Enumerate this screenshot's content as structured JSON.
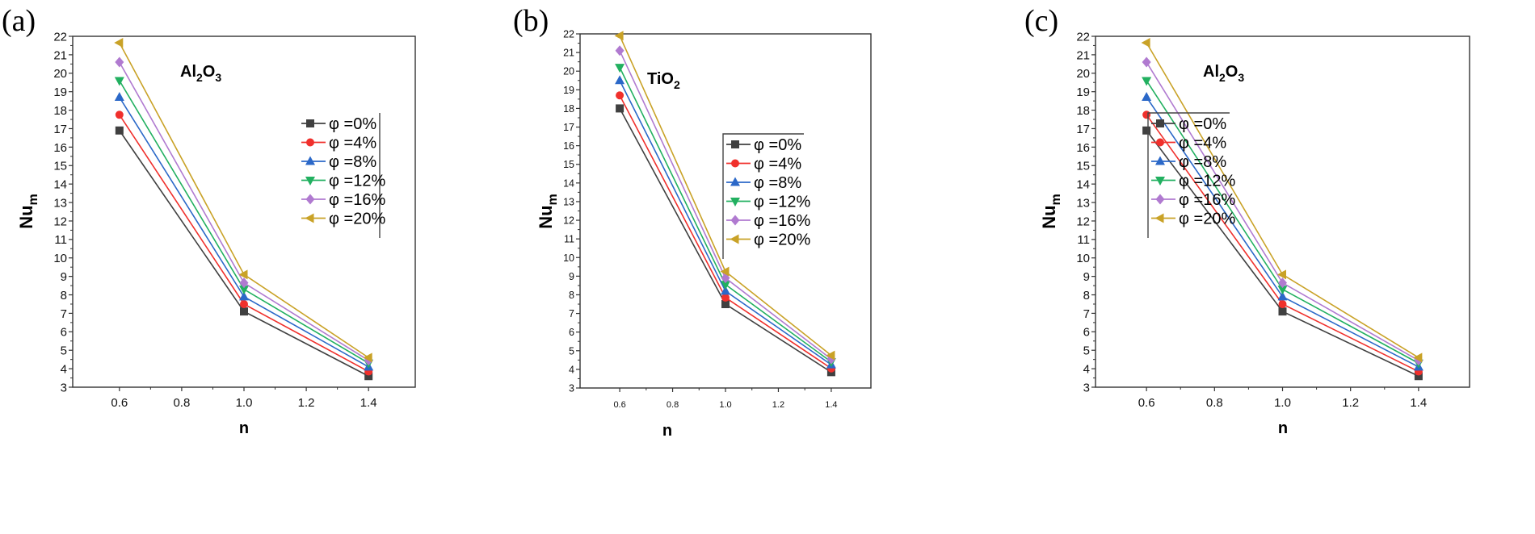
{
  "chart_data": [
    {
      "type": "line",
      "panel_label": "(a)",
      "annotation": {
        "base1": "Al",
        "sub1": "2",
        "base2": "O",
        "sub2": "3"
      },
      "title": "",
      "xlabel": "n",
      "ylabel": {
        "main": "Nu",
        "sub": "m"
      },
      "x": [
        0.6,
        1.0,
        1.4
      ],
      "xlim": [
        0.45,
        1.55
      ],
      "xticks": [
        "0.6",
        "0.8",
        "1.0",
        "1.2",
        "1.4"
      ],
      "ylim": [
        3,
        22
      ],
      "yticks": [
        "3",
        "4",
        "5",
        "6",
        "7",
        "8",
        "9",
        "10",
        "11",
        "12",
        "13",
        "14",
        "15",
        "16",
        "17",
        "18",
        "19",
        "20",
        "21",
        "22"
      ],
      "grid": false,
      "legend_position": "right",
      "series": [
        {
          "name": "φ =0%",
          "color": "#404040",
          "marker": "square",
          "values": [
            16.9,
            7.1,
            3.6
          ]
        },
        {
          "name": "φ =4%",
          "color": "#f0302c",
          "marker": "circle",
          "values": [
            17.75,
            7.5,
            3.85
          ]
        },
        {
          "name": "φ =8%",
          "color": "#2b68c8",
          "marker": "triangle-up",
          "values": [
            18.7,
            7.9,
            4.1
          ]
        },
        {
          "name": "φ =12%",
          "color": "#22b060",
          "marker": "triangle-down",
          "values": [
            19.6,
            8.3,
            4.3
          ]
        },
        {
          "name": "φ =16%",
          "color": "#b07ad0",
          "marker": "diamond",
          "values": [
            20.6,
            8.65,
            4.45
          ]
        },
        {
          "name": "φ =20%",
          "color": "#c9a227",
          "marker": "triangle-left",
          "values": [
            21.65,
            9.1,
            4.6
          ]
        }
      ]
    },
    {
      "type": "line",
      "panel_label": "(b)",
      "annotation": {
        "base1": "TiO",
        "sub1": "2",
        "base2": "",
        "sub2": ""
      },
      "title": "",
      "xlabel": "n",
      "ylabel": {
        "main": "Nu",
        "sub": "m"
      },
      "x": [
        0.6,
        1.0,
        1.4
      ],
      "xlim": [
        0.45,
        1.55
      ],
      "xticks": [
        "0.6",
        "0.8",
        "1.0",
        "1.2",
        "1.4"
      ],
      "ylim": [
        3,
        22
      ],
      "yticks": [
        "3",
        "4",
        "5",
        "6",
        "7",
        "8",
        "9",
        "10",
        "11",
        "12",
        "13",
        "14",
        "15",
        "16",
        "17",
        "18",
        "19",
        "20",
        "21",
        "22"
      ],
      "grid": false,
      "legend_position": "right",
      "series": [
        {
          "name": "φ =0%",
          "color": "#404040",
          "marker": "square",
          "values": [
            18.0,
            7.5,
            3.85
          ]
        },
        {
          "name": "φ =4%",
          "color": "#f0302c",
          "marker": "circle",
          "values": [
            18.7,
            7.85,
            4.05
          ]
        },
        {
          "name": "φ =8%",
          "color": "#2b68c8",
          "marker": "triangle-up",
          "values": [
            19.5,
            8.2,
            4.25
          ]
        },
        {
          "name": "φ =12%",
          "color": "#22b060",
          "marker": "triangle-down",
          "values": [
            20.2,
            8.55,
            4.4
          ]
        },
        {
          "name": "φ =16%",
          "color": "#b07ad0",
          "marker": "diamond",
          "values": [
            21.1,
            8.9,
            4.55
          ]
        },
        {
          "name": "φ =20%",
          "color": "#c9a227",
          "marker": "triangle-left",
          "values": [
            21.9,
            9.25,
            4.75
          ]
        }
      ]
    },
    {
      "type": "line",
      "panel_label": "(c)",
      "annotation": {
        "base1": "Al",
        "sub1": "2",
        "base2": "O",
        "sub2": "3"
      },
      "title": "",
      "xlabel": "n",
      "ylabel": {
        "main": "Nu",
        "sub": "m"
      },
      "x": [
        0.6,
        1.0,
        1.4
      ],
      "xlim": [
        0.45,
        1.55
      ],
      "xticks": [
        "0.6",
        "0.8",
        "1.0",
        "1.2",
        "1.4"
      ],
      "ylim": [
        3,
        22
      ],
      "yticks": [
        "3",
        "4",
        "5",
        "6",
        "7",
        "8",
        "9",
        "10",
        "11",
        "12",
        "13",
        "14",
        "15",
        "16",
        "17",
        "18",
        "19",
        "20",
        "21",
        "22"
      ],
      "grid": false,
      "legend_position": "right",
      "series": [
        {
          "name": "φ =0%",
          "color": "#404040",
          "marker": "square",
          "values": [
            16.9,
            7.1,
            3.6
          ]
        },
        {
          "name": "φ =4%",
          "color": "#f0302c",
          "marker": "circle",
          "values": [
            17.75,
            7.5,
            3.85
          ]
        },
        {
          "name": "φ =8%",
          "color": "#2b68c8",
          "marker": "triangle-up",
          "values": [
            18.7,
            7.9,
            4.1
          ]
        },
        {
          "name": "φ =12%",
          "color": "#22b060",
          "marker": "triangle-down",
          "values": [
            19.6,
            8.3,
            4.3
          ]
        },
        {
          "name": "φ =16%",
          "color": "#b07ad0",
          "marker": "diamond",
          "values": [
            20.6,
            8.65,
            4.45
          ]
        },
        {
          "name": "φ =20%",
          "color": "#c9a227",
          "marker": "triangle-left",
          "values": [
            21.65,
            9.1,
            4.6
          ]
        }
      ]
    }
  ]
}
